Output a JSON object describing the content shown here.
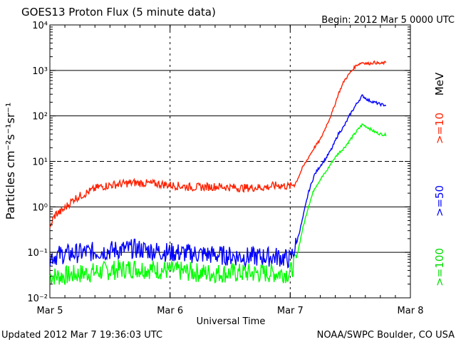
{
  "header": {
    "title": "GOES13 Proton Flux (5 minute data)",
    "begin": "Begin: 2012 Mar 5 0000 UTC"
  },
  "footer": {
    "updated": "Updated 2012 Mar  7 19:36:03 UTC",
    "source": "NOAA/SWPC Boulder, CO USA"
  },
  "chart_data": {
    "type": "line",
    "title": "GOES13 Proton Flux (5 minute data)",
    "xlabel": "Universal Time",
    "ylabel": "Particles cm⁻²s⁻¹sr⁻¹",
    "x_scale": "time (days)",
    "y_scale": "log",
    "xlim": [
      "Mar 5",
      "Mar 8"
    ],
    "ylim": [
      0.01,
      10000
    ],
    "x_ticks": [
      "Mar 5",
      "Mar 6",
      "Mar 7",
      "Mar 8"
    ],
    "y_ticks": [
      "10⁻²",
      "10⁻¹",
      "10⁰",
      "10¹",
      "10²",
      "10³",
      "10⁴"
    ],
    "y_tick_values": [
      0.01,
      0.1,
      1,
      10,
      100,
      1000,
      10000
    ],
    "grid": "horizontal at decades (10¹ dashed), day-boundary dashed verticals",
    "legend_position": "right side, vertical",
    "legend_unit": "MeV",
    "series": [
      {
        "name": ">=10",
        "color": "#ff2000",
        "x_days": [
          0.0,
          0.02,
          0.05,
          0.1,
          0.2,
          0.3,
          0.4,
          0.5,
          0.6,
          0.7,
          0.8,
          0.9,
          1.0,
          1.2,
          1.4,
          1.6,
          1.8,
          1.9,
          2.0,
          2.05,
          2.1,
          2.15,
          2.2,
          2.25,
          2.3,
          2.35,
          2.4,
          2.45,
          2.5,
          2.55,
          2.6,
          2.65,
          2.7,
          2.75,
          2.8
        ],
        "values": [
          0.3,
          0.5,
          0.7,
          0.8,
          1.5,
          2.0,
          2.7,
          3.0,
          3.2,
          3.4,
          3.3,
          3.2,
          3.0,
          2.7,
          2.8,
          2.6,
          2.7,
          3.0,
          2.8,
          3.5,
          7,
          12,
          20,
          30,
          60,
          120,
          300,
          600,
          900,
          1300,
          1500,
          1400,
          1500,
          1400,
          1500
        ]
      },
      {
        "name": ">=50",
        "color": "#0000ff",
        "x_days": [
          0.0,
          0.1,
          0.3,
          0.5,
          0.7,
          1.0,
          1.3,
          1.6,
          1.9,
          2.0,
          2.05,
          2.1,
          2.15,
          2.2,
          2.25,
          2.3,
          2.35,
          2.4,
          2.45,
          2.5,
          2.55,
          2.6,
          2.65,
          2.7,
          2.75,
          2.8
        ],
        "values": [
          0.08,
          0.09,
          0.1,
          0.11,
          0.12,
          0.1,
          0.09,
          0.08,
          0.08,
          0.07,
          0.15,
          0.5,
          2.0,
          5.0,
          8.0,
          12,
          20,
          40,
          60,
          110,
          180,
          280,
          220,
          200,
          180,
          170
        ]
      },
      {
        "name": ">=100",
        "color": "#00ff00",
        "x_days": [
          0.0,
          0.1,
          0.3,
          0.5,
          0.7,
          1.0,
          1.3,
          1.6,
          1.9,
          2.0,
          2.05,
          2.1,
          2.15,
          2.2,
          2.25,
          2.3,
          2.35,
          2.4,
          2.45,
          2.5,
          2.55,
          2.6,
          2.65,
          2.7,
          2.75,
          2.8
        ],
        "values": [
          0.03,
          0.03,
          0.035,
          0.04,
          0.045,
          0.04,
          0.035,
          0.035,
          0.035,
          0.035,
          0.07,
          0.3,
          1.0,
          2.5,
          4.0,
          6.0,
          10,
          15,
          20,
          30,
          45,
          65,
          55,
          45,
          40,
          38
        ]
      }
    ]
  }
}
